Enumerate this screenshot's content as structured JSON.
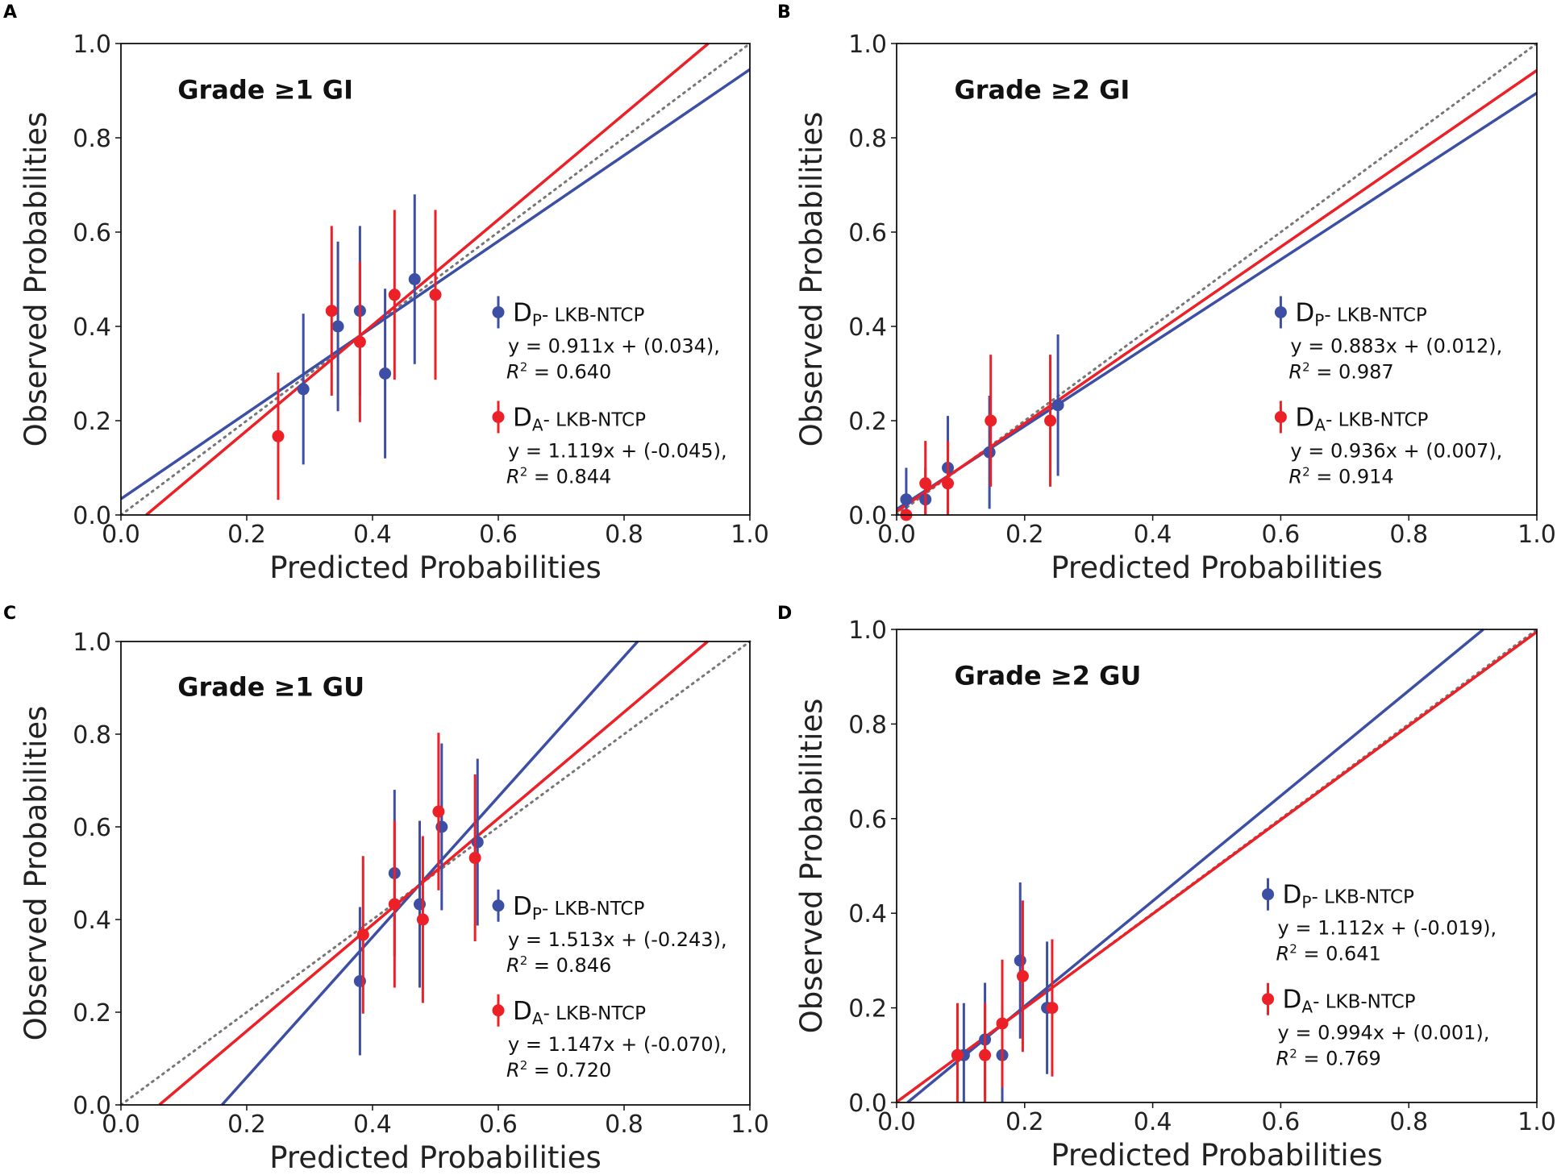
{
  "colors": {
    "blue": "#3c4fa5",
    "red": "#ec2027",
    "diag": "#777777"
  },
  "chart_data": [
    {
      "type": "scatter",
      "panel": "A",
      "title": "Grade ≥1 GI",
      "xlabel": "Predicted Probabilities",
      "ylabel": "Observed Probabilities",
      "xlim": [
        0,
        1
      ],
      "ylim": [
        0,
        1
      ],
      "xticks": [
        "0.0",
        "0.2",
        "0.4",
        "0.6",
        "0.8",
        "1.0"
      ],
      "yticks": [
        "0.0",
        "0.2",
        "0.4",
        "0.6",
        "0.8",
        "1.0"
      ],
      "series": [
        {
          "name": "DP- LKB-NTCP",
          "sub": "P",
          "color": "blue",
          "eq": "y = 0.911x + (0.034),",
          "r2": "= 0.640",
          "slope": 0.911,
          "intercept": 0.034,
          "points": [
            [
              0.29,
              0.267,
              0.16
            ],
            [
              0.345,
              0.4,
              0.18
            ],
            [
              0.38,
              0.433,
              0.18
            ],
            [
              0.42,
              0.3,
              0.18
            ],
            [
              0.467,
              0.5,
              0.18
            ]
          ]
        },
        {
          "name": "DA- LKB-NTCP",
          "sub": "A",
          "color": "red",
          "eq": "y = 1.119x + (-0.045),",
          "r2": "= 0.844",
          "slope": 1.119,
          "intercept": -0.045,
          "points": [
            [
              0.25,
              0.167,
              0.135
            ],
            [
              0.335,
              0.433,
              0.18
            ],
            [
              0.38,
              0.367,
              0.17
            ],
            [
              0.435,
              0.467,
              0.18
            ],
            [
              0.5,
              0.467,
              0.18
            ]
          ]
        }
      ]
    },
    {
      "type": "scatter",
      "panel": "B",
      "title": "Grade ≥2 GI",
      "xlabel": "Predicted Probabilities",
      "ylabel": "Observed Probabilities",
      "xlim": [
        0,
        1
      ],
      "ylim": [
        0,
        1
      ],
      "xticks": [
        "0.0",
        "0.2",
        "0.4",
        "0.6",
        "0.8",
        "1.0"
      ],
      "yticks": [
        "0.0",
        "0.2",
        "0.4",
        "0.6",
        "0.8",
        "1.0"
      ],
      "series": [
        {
          "name": "DP- LKB-NTCP",
          "sub": "P",
          "color": "blue",
          "eq": "y = 0.883x + (0.012),",
          "r2": "= 0.987",
          "slope": 0.883,
          "intercept": 0.012,
          "points": [
            [
              0.015,
              0.033,
              0.067
            ],
            [
              0.045,
              0.033,
              0.067
            ],
            [
              0.08,
              0.1,
              0.11
            ],
            [
              0.145,
              0.133,
              0.12
            ],
            [
              0.252,
              0.233,
              0.15
            ]
          ]
        },
        {
          "name": "DA- LKB-NTCP",
          "sub": "A",
          "color": "red",
          "eq": "y = 0.936x + (0.007),",
          "r2": "= 0.914",
          "slope": 0.936,
          "intercept": 0.007,
          "points": [
            [
              0.015,
              0.0,
              0.0
            ],
            [
              0.045,
              0.067,
              0.09
            ],
            [
              0.08,
              0.067,
              0.09
            ],
            [
              0.147,
              0.2,
              0.14
            ],
            [
              0.24,
              0.2,
              0.14
            ]
          ]
        }
      ]
    },
    {
      "type": "scatter",
      "panel": "C",
      "title": "Grade ≥1 GU",
      "xlabel": "Predicted Probabilities",
      "ylabel": "Observed Probabilities",
      "xlim": [
        0,
        1
      ],
      "ylim": [
        0,
        1
      ],
      "xticks": [
        "0.0",
        "0.2",
        "0.4",
        "0.6",
        "0.8",
        "1.0"
      ],
      "yticks": [
        "0.0",
        "0.2",
        "0.4",
        "0.6",
        "0.8",
        "1.0"
      ],
      "series": [
        {
          "name": "DP- LKB-NTCP",
          "sub": "P",
          "color": "blue",
          "eq": "y = 1.513x + (-0.243),",
          "r2": "= 0.846",
          "slope": 1.513,
          "intercept": -0.243,
          "points": [
            [
              0.38,
              0.267,
              0.16
            ],
            [
              0.435,
              0.5,
              0.18
            ],
            [
              0.475,
              0.433,
              0.18
            ],
            [
              0.51,
              0.6,
              0.18
            ],
            [
              0.567,
              0.567,
              0.18
            ]
          ]
        },
        {
          "name": "DA- LKB-NTCP",
          "sub": "A",
          "color": "red",
          "eq": "y = 1.147x + (-0.070),",
          "r2": "= 0.720",
          "slope": 1.147,
          "intercept": -0.07,
          "points": [
            [
              0.385,
              0.367,
              0.17
            ],
            [
              0.435,
              0.433,
              0.18
            ],
            [
              0.48,
              0.4,
              0.18
            ],
            [
              0.505,
              0.633,
              0.17
            ],
            [
              0.563,
              0.533,
              0.18
            ]
          ]
        }
      ]
    },
    {
      "type": "scatter",
      "panel": "D",
      "title": "Grade ≥2 GU",
      "xlabel": "Predicted Probabilities",
      "ylabel": "Observed Probabilities",
      "xlim": [
        0,
        1
      ],
      "ylim": [
        0,
        1
      ],
      "xticks": [
        "0.0",
        "0.2",
        "0.4",
        "0.6",
        "0.8",
        "1.0"
      ],
      "yticks": [
        "0.0",
        "0.2",
        "0.4",
        "0.6",
        "0.8",
        "1.0"
      ],
      "series": [
        {
          "name": "DP- LKB-NTCP",
          "sub": "P",
          "color": "blue",
          "eq": "y = 1.112x + (-0.019),",
          "r2": "= 0.641",
          "slope": 1.112,
          "intercept": -0.019,
          "points": [
            [
              0.105,
              0.1,
              0.11
            ],
            [
              0.138,
              0.133,
              0.12
            ],
            [
              0.165,
              0.1,
              0.11
            ],
            [
              0.193,
              0.3,
              0.165
            ],
            [
              0.235,
              0.2,
              0.14
            ]
          ]
        },
        {
          "name": "DA- LKB-NTCP",
          "sub": "A",
          "color": "red",
          "eq": "y = 0.994x + (0.001),",
          "r2": "= 0.769",
          "slope": 0.994,
          "intercept": 0.001,
          "points": [
            [
              0.095,
              0.1,
              0.11
            ],
            [
              0.138,
              0.1,
              0.11
            ],
            [
              0.165,
              0.167,
              0.135
            ],
            [
              0.197,
              0.267,
              0.16
            ],
            [
              0.243,
              0.2,
              0.145
            ]
          ]
        }
      ]
    }
  ]
}
